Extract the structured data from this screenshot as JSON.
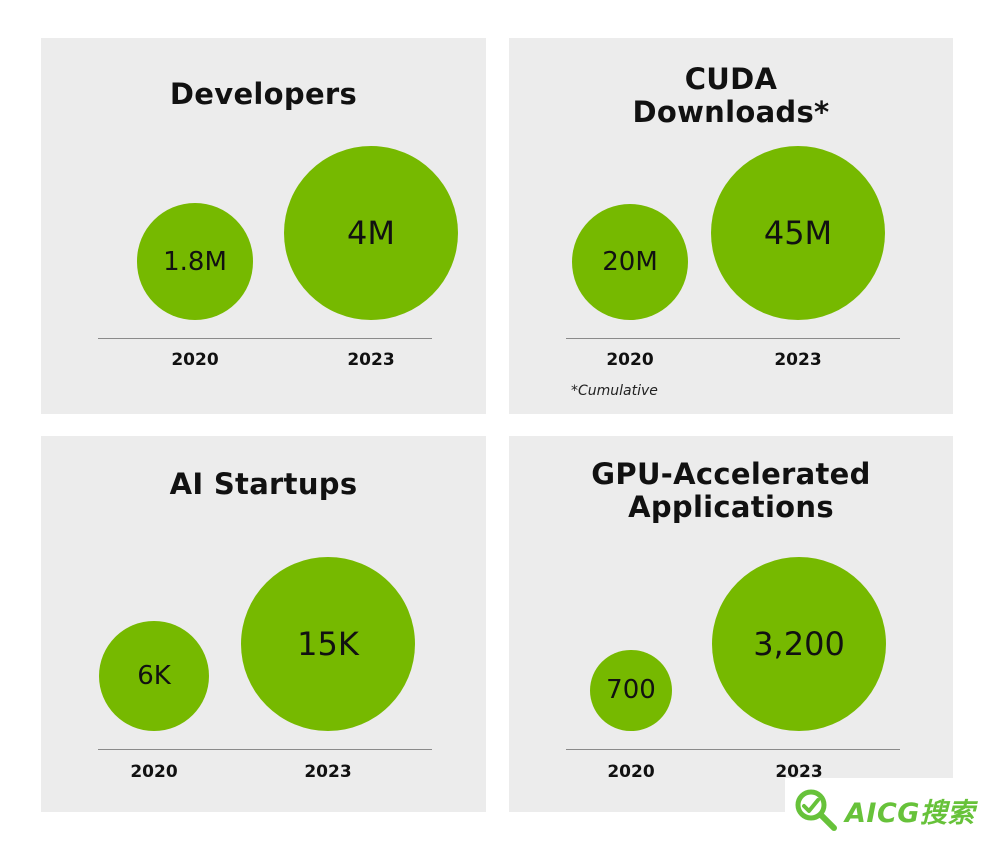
{
  "chart_data": [
    {
      "type": "bubble",
      "title": "Developers",
      "categories": [
        "2020",
        "2023"
      ],
      "values": [
        1.8,
        4
      ],
      "unit": "M",
      "value_labels": [
        "1.8M",
        "4M"
      ],
      "footnote": "",
      "color": "#76b900"
    },
    {
      "type": "bubble",
      "title": "CUDA Downloads*",
      "title_lines": [
        "CUDA",
        "Downloads*"
      ],
      "categories": [
        "2020",
        "2023"
      ],
      "values": [
        20,
        45
      ],
      "unit": "M",
      "value_labels": [
        "20M",
        "45M"
      ],
      "footnote": "*Cumulative",
      "color": "#76b900"
    },
    {
      "type": "bubble",
      "title": "AI Startups",
      "categories": [
        "2020",
        "2023"
      ],
      "values": [
        6,
        15
      ],
      "unit": "K",
      "value_labels": [
        "6K",
        "15K"
      ],
      "footnote": "",
      "color": "#76b900"
    },
    {
      "type": "bubble",
      "title": "GPU-Accelerated Applications",
      "title_lines": [
        "GPU-Accelerated",
        "Applications"
      ],
      "categories": [
        "2020",
        "2023"
      ],
      "values": [
        700,
        3200
      ],
      "unit": "",
      "value_labels": [
        "700",
        "3,200"
      ],
      "footnote": "",
      "color": "#76b900"
    }
  ],
  "watermark": {
    "text": "AICG搜索",
    "icon": "magnifier-icon",
    "color": "#67c23a"
  }
}
